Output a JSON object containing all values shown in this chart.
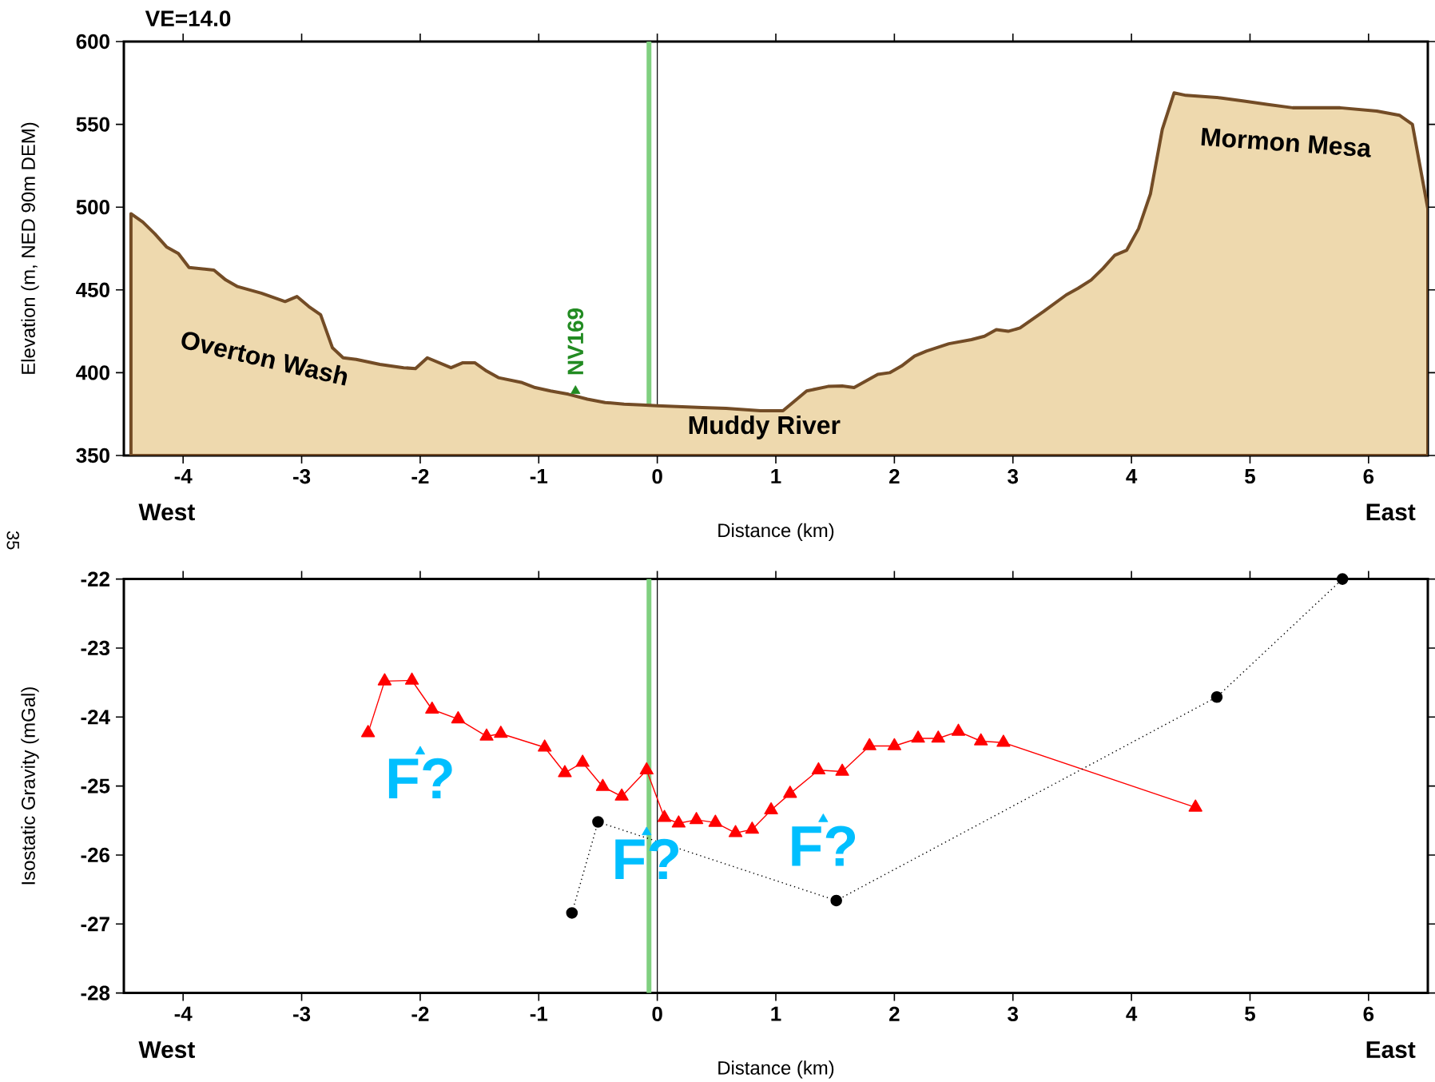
{
  "chart_data": [
    {
      "type": "area",
      "title": "VE=14.0",
      "xlabel": "Distance (km)",
      "ylabel": "Elevation (m, NED 90m DEM)",
      "xlim": [
        -4.5,
        6.5
      ],
      "xticks": [
        -4,
        -3,
        -2,
        -1,
        0,
        1,
        2,
        3,
        4,
        5,
        6
      ],
      "ylim": [
        350,
        600
      ],
      "yticks": [
        350,
        400,
        450,
        500,
        550,
        600
      ],
      "series": [
        {
          "color": "#eed9ae",
          "x": [
            -4.44,
            -4.34,
            -4.24,
            -4.14,
            -4.04,
            -3.95,
            -3.74,
            -3.64,
            -3.54,
            -3.34,
            -3.14,
            -3.04,
            -2.94,
            -2.84,
            -2.74,
            -2.65,
            -2.54,
            -2.34,
            -2.14,
            -2.04,
            -1.94,
            -1.74,
            -1.64,
            -1.54,
            -1.44,
            -1.34,
            -1.14,
            -1.03,
            -0.9,
            -0.75,
            -0.59,
            -0.44,
            -0.28,
            -0.13,
            0.0,
            0.38,
            0.58,
            0.87,
            1.06,
            1.26,
            1.44,
            1.56,
            1.66,
            1.76,
            1.86,
            1.96,
            2.06,
            2.17,
            2.27,
            2.46,
            2.65,
            2.76,
            2.86,
            2.96,
            3.06,
            3.26,
            3.45,
            3.55,
            3.66,
            3.76,
            3.86,
            3.96,
            4.06,
            4.16,
            4.26,
            4.36,
            4.46,
            4.75,
            4.95,
            5.15,
            5.36,
            5.76,
            6.07,
            6.26,
            6.37,
            6.5
          ],
          "values": [
            496,
            491,
            484,
            476,
            472,
            463.5,
            462,
            456,
            452,
            448,
            443,
            446,
            440,
            435,
            415,
            409,
            408,
            405,
            403,
            402.5,
            409,
            403,
            406,
            406,
            401,
            397,
            394,
            391,
            389,
            387,
            384,
            382,
            381,
            380.5,
            380,
            379,
            378.5,
            377,
            377,
            389,
            391.7,
            392,
            391,
            395,
            399,
            400,
            404,
            410,
            413,
            417.5,
            420,
            422,
            426,
            425,
            427,
            437,
            447,
            451,
            456,
            463,
            471,
            474,
            487,
            508,
            547,
            569,
            567.5,
            566,
            564,
            562,
            560,
            560,
            558,
            555.5,
            550,
            499
          ]
        },
        {
          "type": "scatter",
          "name": "NV169",
          "color": "#228b22",
          "marker": "triangle",
          "x": [
            -0.69
          ],
          "values": [
            389
          ]
        }
      ],
      "ref_lines": [
        {
          "axis": "x",
          "value": -0.07,
          "color": "#80d080"
        },
        {
          "axis": "x",
          "value": 0,
          "color": "#000000"
        }
      ],
      "annotations": [
        "Overton Wash",
        "Muddy River",
        "Mormon Mesa",
        "West",
        "East",
        "35"
      ]
    },
    {
      "type": "line",
      "xlabel": "Distance (km)",
      "ylabel": "Isostatic Gravity (mGal)",
      "xlim": [
        -4.5,
        6.5
      ],
      "xticks": [
        -4,
        -3,
        -2,
        -1,
        0,
        1,
        2,
        3,
        4,
        5,
        6
      ],
      "ylim": [
        -28,
        -22
      ],
      "yticks": [
        -28,
        -27,
        -26,
        -25,
        -24,
        -23,
        -22
      ],
      "series": [
        {
          "color": "#ff0000",
          "marker": "triangle",
          "line_style": "solid",
          "x": [
            -2.44,
            -2.3,
            -2.07,
            -1.9,
            -1.68,
            -1.44,
            -1.32,
            -0.95,
            -0.78,
            -0.63,
            -0.46,
            -0.3,
            -0.09,
            0.06,
            0.18,
            0.33,
            0.49,
            0.66,
            0.8,
            0.96,
            1.12,
            1.36,
            1.56,
            1.79,
            2.0,
            2.2,
            2.37,
            2.54,
            2.73,
            2.92,
            4.54
          ],
          "values": [
            -24.23,
            -23.48,
            -23.47,
            -23.89,
            -24.03,
            -24.28,
            -24.24,
            -24.44,
            -24.81,
            -24.66,
            -25.01,
            -25.15,
            -24.77,
            -25.46,
            -25.54,
            -25.49,
            -25.53,
            -25.68,
            -25.63,
            -25.35,
            -25.11,
            -24.77,
            -24.79,
            -24.42,
            -24.42,
            -24.31,
            -24.31,
            -24.21,
            -24.35,
            -24.37,
            -25.31
          ]
        },
        {
          "color": "#000000",
          "marker": "circle",
          "line_style": "dotted",
          "x": [
            -0.72,
            -0.5,
            1.51,
            4.72,
            5.78
          ],
          "values": [
            -26.84,
            -25.52,
            -26.66,
            -23.71,
            -22
          ]
        },
        {
          "type": "scatter",
          "color": "#00bfff",
          "marker": "triangle",
          "x": [
            -2.0,
            -0.09,
            1.4
          ],
          "values": [
            -24.5,
            -25.67,
            -25.48
          ],
          "value_labels": [
            "F?",
            "F?",
            "F?"
          ]
        }
      ],
      "ref_lines": [
        {
          "axis": "x",
          "value": -0.07,
          "color": "#80d080"
        },
        {
          "axis": "x",
          "value": 0,
          "color": "#000000"
        }
      ],
      "annotations": [
        "West",
        "East"
      ]
    }
  ]
}
